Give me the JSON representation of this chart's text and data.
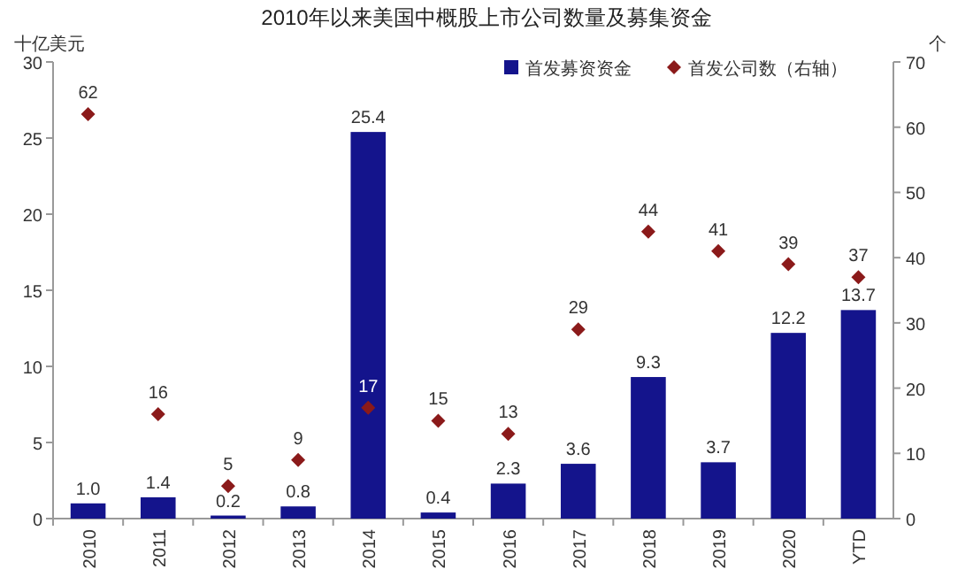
{
  "chart_data": {
    "type": "bar",
    "title": "2010年以来美国中概股上市公司数量及募集资金",
    "ylabel": "十亿美元",
    "y2label": "个",
    "categories": [
      "2010",
      "2011",
      "2012",
      "2013",
      "2014",
      "2015",
      "2016",
      "2017",
      "2018",
      "2019",
      "2020",
      "YTD"
    ],
    "series": [
      {
        "name": "首发募资资金",
        "color": "#14148c",
        "values": [
          1.0,
          1.4,
          0.2,
          0.8,
          25.4,
          0.4,
          2.3,
          3.6,
          9.3,
          3.7,
          12.2,
          13.7
        ],
        "value_labels": [
          "1.0",
          "1.4",
          "0.2",
          "0.8",
          "25.4",
          "0.4",
          "2.3",
          "3.6",
          "9.3",
          "3.7",
          "12.2",
          "13.7"
        ]
      },
      {
        "name": "首发公司数（右轴）",
        "type": "scatter",
        "axis": "y2",
        "marker": "diamond",
        "color": "#8b1a1a",
        "values": [
          62,
          16,
          5,
          9,
          17,
          15,
          13,
          29,
          44,
          41,
          39,
          37
        ],
        "value_labels": [
          "62",
          "16",
          "5",
          "9",
          "17",
          "15",
          "13",
          "29",
          "44",
          "41",
          "39",
          "37"
        ]
      }
    ],
    "ylim": [
      0,
      30
    ],
    "yticks": [
      0,
      5,
      10,
      15,
      20,
      25,
      30
    ],
    "y2lim": [
      0,
      70
    ],
    "y2ticks": [
      0,
      10,
      20,
      30,
      40,
      50,
      60,
      70
    ],
    "legend": "top right",
    "grid": false
  }
}
